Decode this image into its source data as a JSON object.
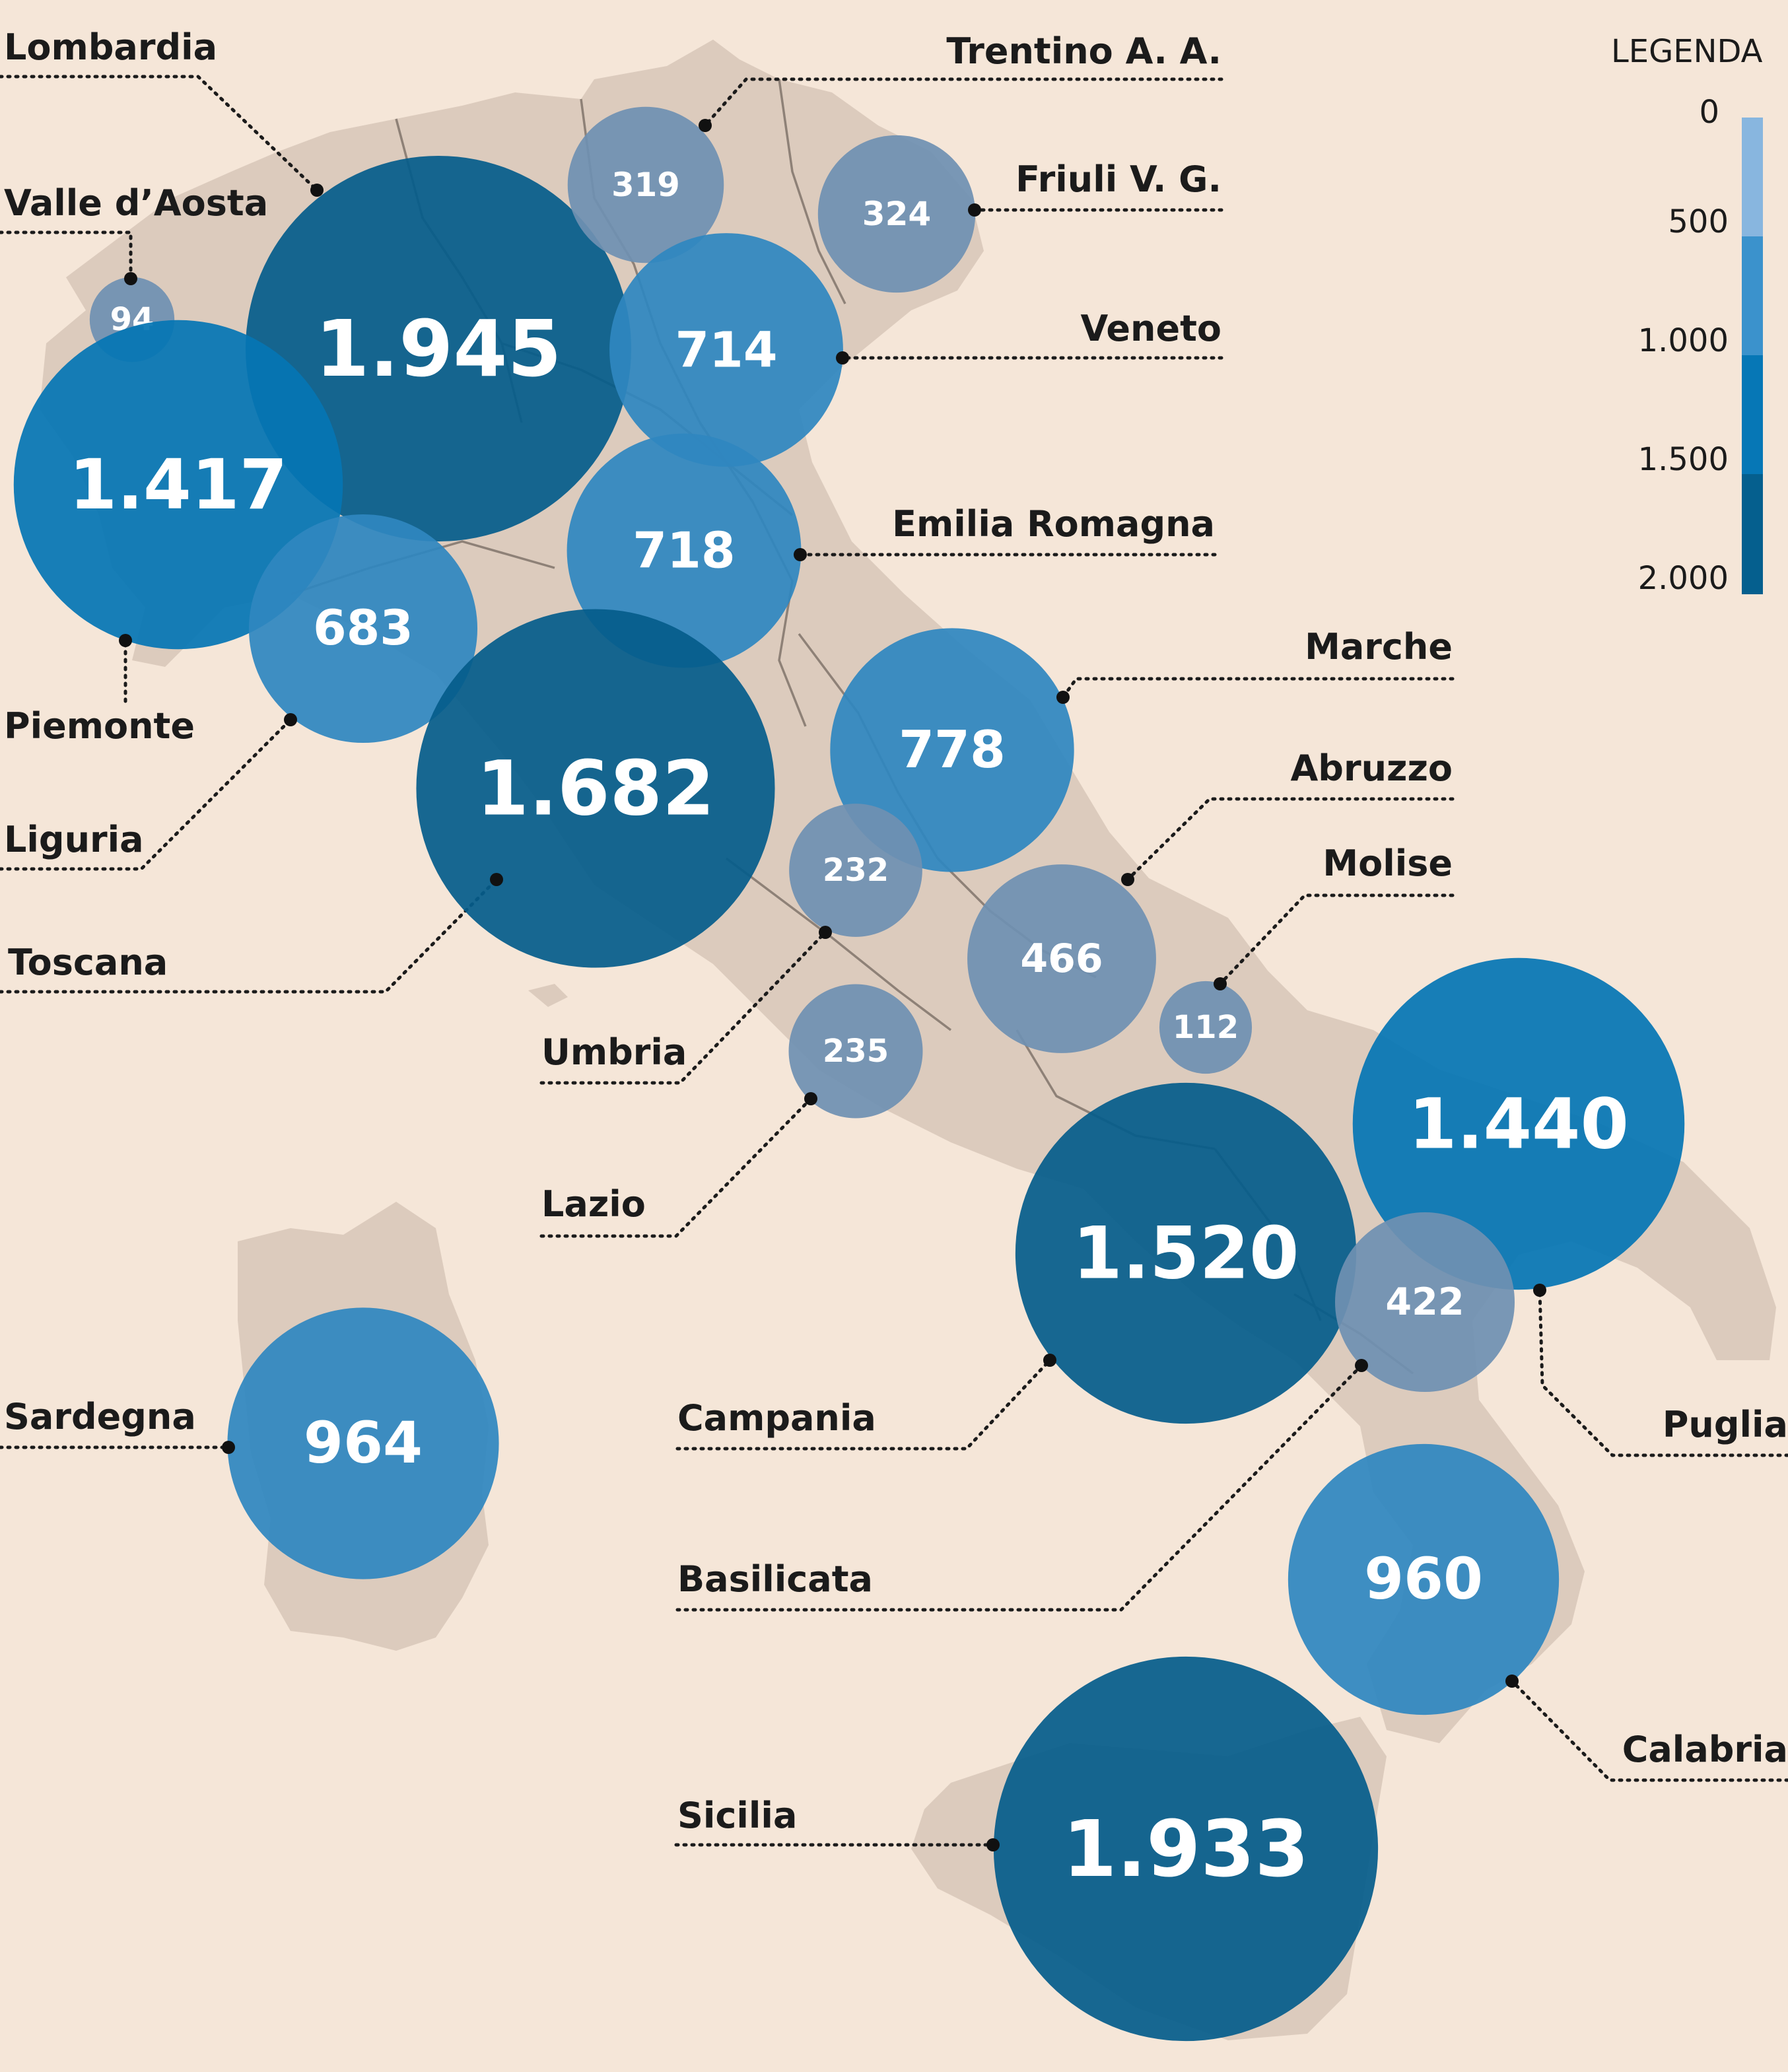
{
  "legend": {
    "title": "LEGENDA",
    "ticks": [
      "0",
      "500",
      "1.000",
      "1.500",
      "2.000"
    ],
    "colors": [
      "#88b6df",
      "#3b92cc",
      "#0677b6",
      "#055f8e"
    ]
  },
  "colors": {
    "background": "#f5e6d8",
    "land": "#dccbbd",
    "border": "#8e8177",
    "bubble_low": "#6f90b2",
    "bubble_mid": "#2f86c0",
    "bubble_high": "#0575b4",
    "bubble_top": "#055d8b"
  },
  "chart_data": {
    "type": "proportional-symbol map",
    "legend_range": [
      0,
      2000
    ],
    "regions": [
      {
        "name": "Lombardia",
        "value": 1945,
        "label": "1.945"
      },
      {
        "name": "Trentino A. A.",
        "value": 319,
        "label": "319"
      },
      {
        "name": "Friuli V. G.",
        "value": 324,
        "label": "324"
      },
      {
        "name": "Valle d’Aosta",
        "value": 94,
        "label": "94"
      },
      {
        "name": "Veneto",
        "value": 714,
        "label": "714"
      },
      {
        "name": "Piemonte",
        "value": 1417,
        "label": "1.417"
      },
      {
        "name": "Emilia Romagna",
        "value": 718,
        "label": "718"
      },
      {
        "name": "Liguria",
        "value": 683,
        "label": "683"
      },
      {
        "name": "Marche",
        "value": 778,
        "label": "778"
      },
      {
        "name": "Toscana",
        "value": 1682,
        "label": "1.682"
      },
      {
        "name": "Abruzzo",
        "value": 466,
        "label": "466"
      },
      {
        "name": "Umbria",
        "value": 232,
        "label": "232"
      },
      {
        "name": "Molise",
        "value": 112,
        "label": "112"
      },
      {
        "name": "Lazio",
        "value": 235,
        "label": "235"
      },
      {
        "name": "Puglia",
        "value": 1440,
        "label": "1.440"
      },
      {
        "name": "Campania",
        "value": 1520,
        "label": "1.520"
      },
      {
        "name": "Basilicata",
        "value": 422,
        "label": "422"
      },
      {
        "name": "Sardegna",
        "value": 964,
        "label": "964"
      },
      {
        "name": "Calabria",
        "value": 960,
        "label": "960"
      },
      {
        "name": "Sicilia",
        "value": 1933,
        "label": "1.933"
      }
    ]
  }
}
